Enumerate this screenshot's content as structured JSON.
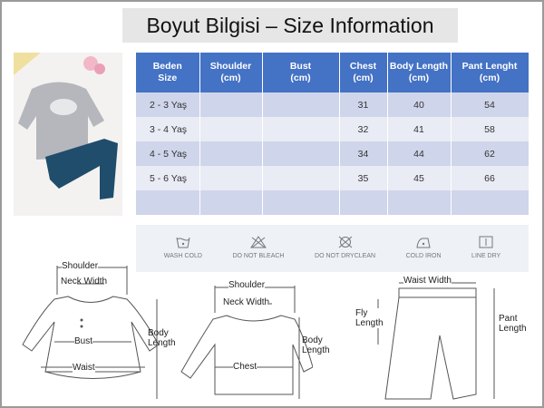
{
  "title": "Boyut Bilgisi – Size Information",
  "table": {
    "headers": [
      [
        "Beden",
        "Size"
      ],
      [
        "Shoulder",
        "(cm)"
      ],
      [
        "Bust",
        "(cm)"
      ],
      [
        "Chest",
        "(cm)"
      ],
      [
        "Body Length",
        "(cm)"
      ],
      [
        "Pant Lenght",
        "(cm)"
      ]
    ],
    "rows": [
      [
        "2 - 3 Yaş",
        "",
        "",
        "31",
        "40",
        "54"
      ],
      [
        "3 - 4 Yaş",
        "",
        "",
        "32",
        "41",
        "58"
      ],
      [
        "4 - 5 Yaş",
        "",
        "",
        "34",
        "44",
        "62"
      ],
      [
        "5 - 6 Yaş",
        "",
        "",
        "35",
        "45",
        "66"
      ],
      [
        "",
        "",
        "",
        "",
        "",
        ""
      ]
    ]
  },
  "care": [
    {
      "icon": "wash-cold-icon",
      "label": "WASH COLD"
    },
    {
      "icon": "do-not-bleach-icon",
      "label": "DO NOT BLEACH"
    },
    {
      "icon": "do-not-dryclean-icon",
      "label": "DO NOT DRYCLEAN"
    },
    {
      "icon": "cold-iron-icon",
      "label": "COLD IRON"
    },
    {
      "icon": "line-dry-icon",
      "label": "LINE DRY"
    }
  ],
  "diagrams": {
    "dress": {
      "shoulder": "Shoulder",
      "neck": "Neck Width",
      "bust": "Bust",
      "waist": "Waist",
      "body": [
        "Body",
        "Length"
      ]
    },
    "shirt": {
      "shoulder": "Shoulder",
      "neck": "Neck Width",
      "chest": "Chest",
      "body": [
        "Body",
        "Length"
      ]
    },
    "pants": {
      "waist": "Waist Width",
      "fly": [
        "Fly",
        "Length"
      ],
      "pant": [
        "Pant",
        "Length"
      ]
    }
  },
  "colors": {
    "header": "#4472c4",
    "row_dark": "#cfd5ea",
    "row_light": "#e9ebf5"
  }
}
